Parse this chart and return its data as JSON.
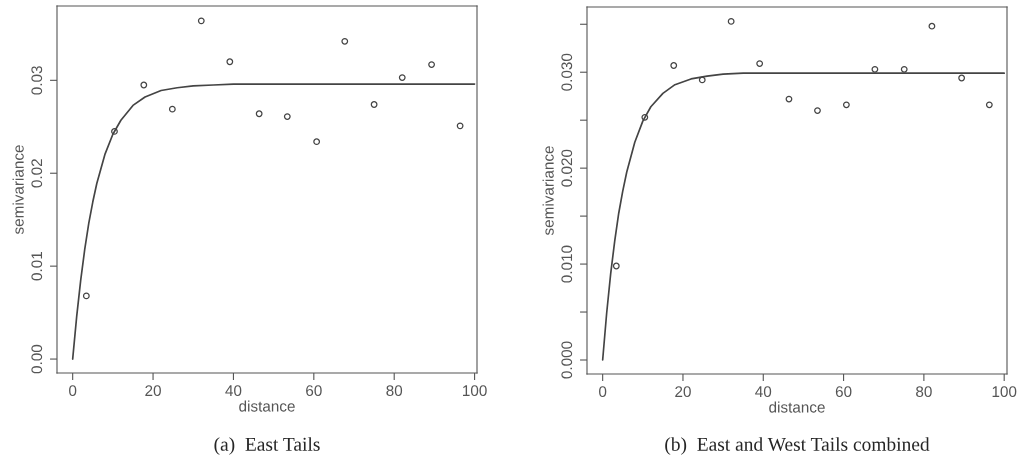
{
  "chart_data": [
    {
      "type": "scatter",
      "title": "(a)  East Tails",
      "xlabel": "distance",
      "ylabel": "semivariance",
      "xlim": [
        -3.9,
        100.6
      ],
      "ylim": [
        -0.0015,
        0.038
      ],
      "xticks": [
        0,
        20,
        40,
        60,
        80,
        {
          "value": 100,
          "label": "100"
        }
      ],
      "yticks": [
        {
          "value": 0,
          "label": "0.00"
        },
        0.01,
        0.02,
        0.03
      ],
      "grid": false,
      "legend": false,
      "series": [
        {
          "marker": "circle",
          "color": "#444444",
          "x": [
            3.4,
            10.4,
            17.7,
            24.8,
            32.0,
            39.1,
            46.4,
            53.4,
            60.7,
            67.7,
            75.0,
            82.0,
            89.3,
            96.4
          ],
          "values": [
            0.0068,
            0.0245,
            0.0295,
            0.0269,
            0.0364,
            0.032,
            0.0264,
            0.0261,
            0.0234,
            0.0342,
            0.0274,
            0.0303,
            0.0317,
            0.0251
          ]
        },
        {
          "type": "line",
          "line_style": "solid",
          "color": "#444444",
          "x": [
            0,
            1,
            2,
            3,
            4,
            5,
            6,
            8,
            10,
            12,
            15,
            18,
            22,
            26,
            30,
            35,
            40,
            100
          ],
          "values": [
            0,
            0.0046,
            0.0085,
            0.0118,
            0.0146,
            0.0169,
            0.0189,
            0.022,
            0.0242,
            0.0257,
            0.0273,
            0.0282,
            0.0289,
            0.0292,
            0.0294,
            0.0295,
            0.0296,
            0.0296
          ]
        }
      ]
    },
    {
      "type": "scatter",
      "title": "(b)  East and West Tails combined",
      "xlabel": "distance",
      "ylabel": "semivariance",
      "xlim": [
        -3.9,
        100.7
      ],
      "ylim": [
        -0.00146,
        0.0368
      ],
      "xticks": [
        0,
        20,
        40,
        60,
        80,
        {
          "value": 100,
          "label": "100"
        }
      ],
      "yticks": [
        {
          "value": 0,
          "label": "0.000"
        },
        {
          "value": 0.005,
          "label": null
        },
        {
          "value": 0.01,
          "label": "0.010"
        },
        {
          "value": 0.015,
          "label": null
        },
        {
          "value": 0.02,
          "label": "0.020"
        },
        {
          "value": 0.025,
          "label": null
        },
        {
          "value": 0.03,
          "label": "0.030"
        },
        {
          "value": 0.035,
          "label": null
        }
      ],
      "grid": false,
      "legend": false,
      "series": [
        {
          "marker": "circle",
          "color": "#444444",
          "x": [
            3.4,
            10.5,
            17.7,
            24.8,
            32.0,
            39.1,
            46.4,
            53.5,
            60.7,
            67.8,
            75.1,
            82.0,
            89.4,
            96.3
          ],
          "values": [
            0.0098,
            0.0253,
            0.0307,
            0.0292,
            0.0353,
            0.0309,
            0.0272,
            0.026,
            0.0266,
            0.0303,
            0.0303,
            0.0348,
            0.0294,
            0.0266
          ]
        },
        {
          "type": "line",
          "line_style": "solid",
          "color": "#444444",
          "x": [
            0,
            1,
            2,
            3,
            4,
            5,
            6,
            8,
            10,
            12,
            15,
            18,
            22,
            26,
            30,
            35,
            100
          ],
          "values": [
            0,
            0.0049,
            0.009,
            0.0124,
            0.0153,
            0.0176,
            0.0196,
            0.0227,
            0.0249,
            0.0264,
            0.0278,
            0.0287,
            0.0293,
            0.0296,
            0.0298,
            0.0299,
            0.0299
          ]
        }
      ]
    }
  ]
}
